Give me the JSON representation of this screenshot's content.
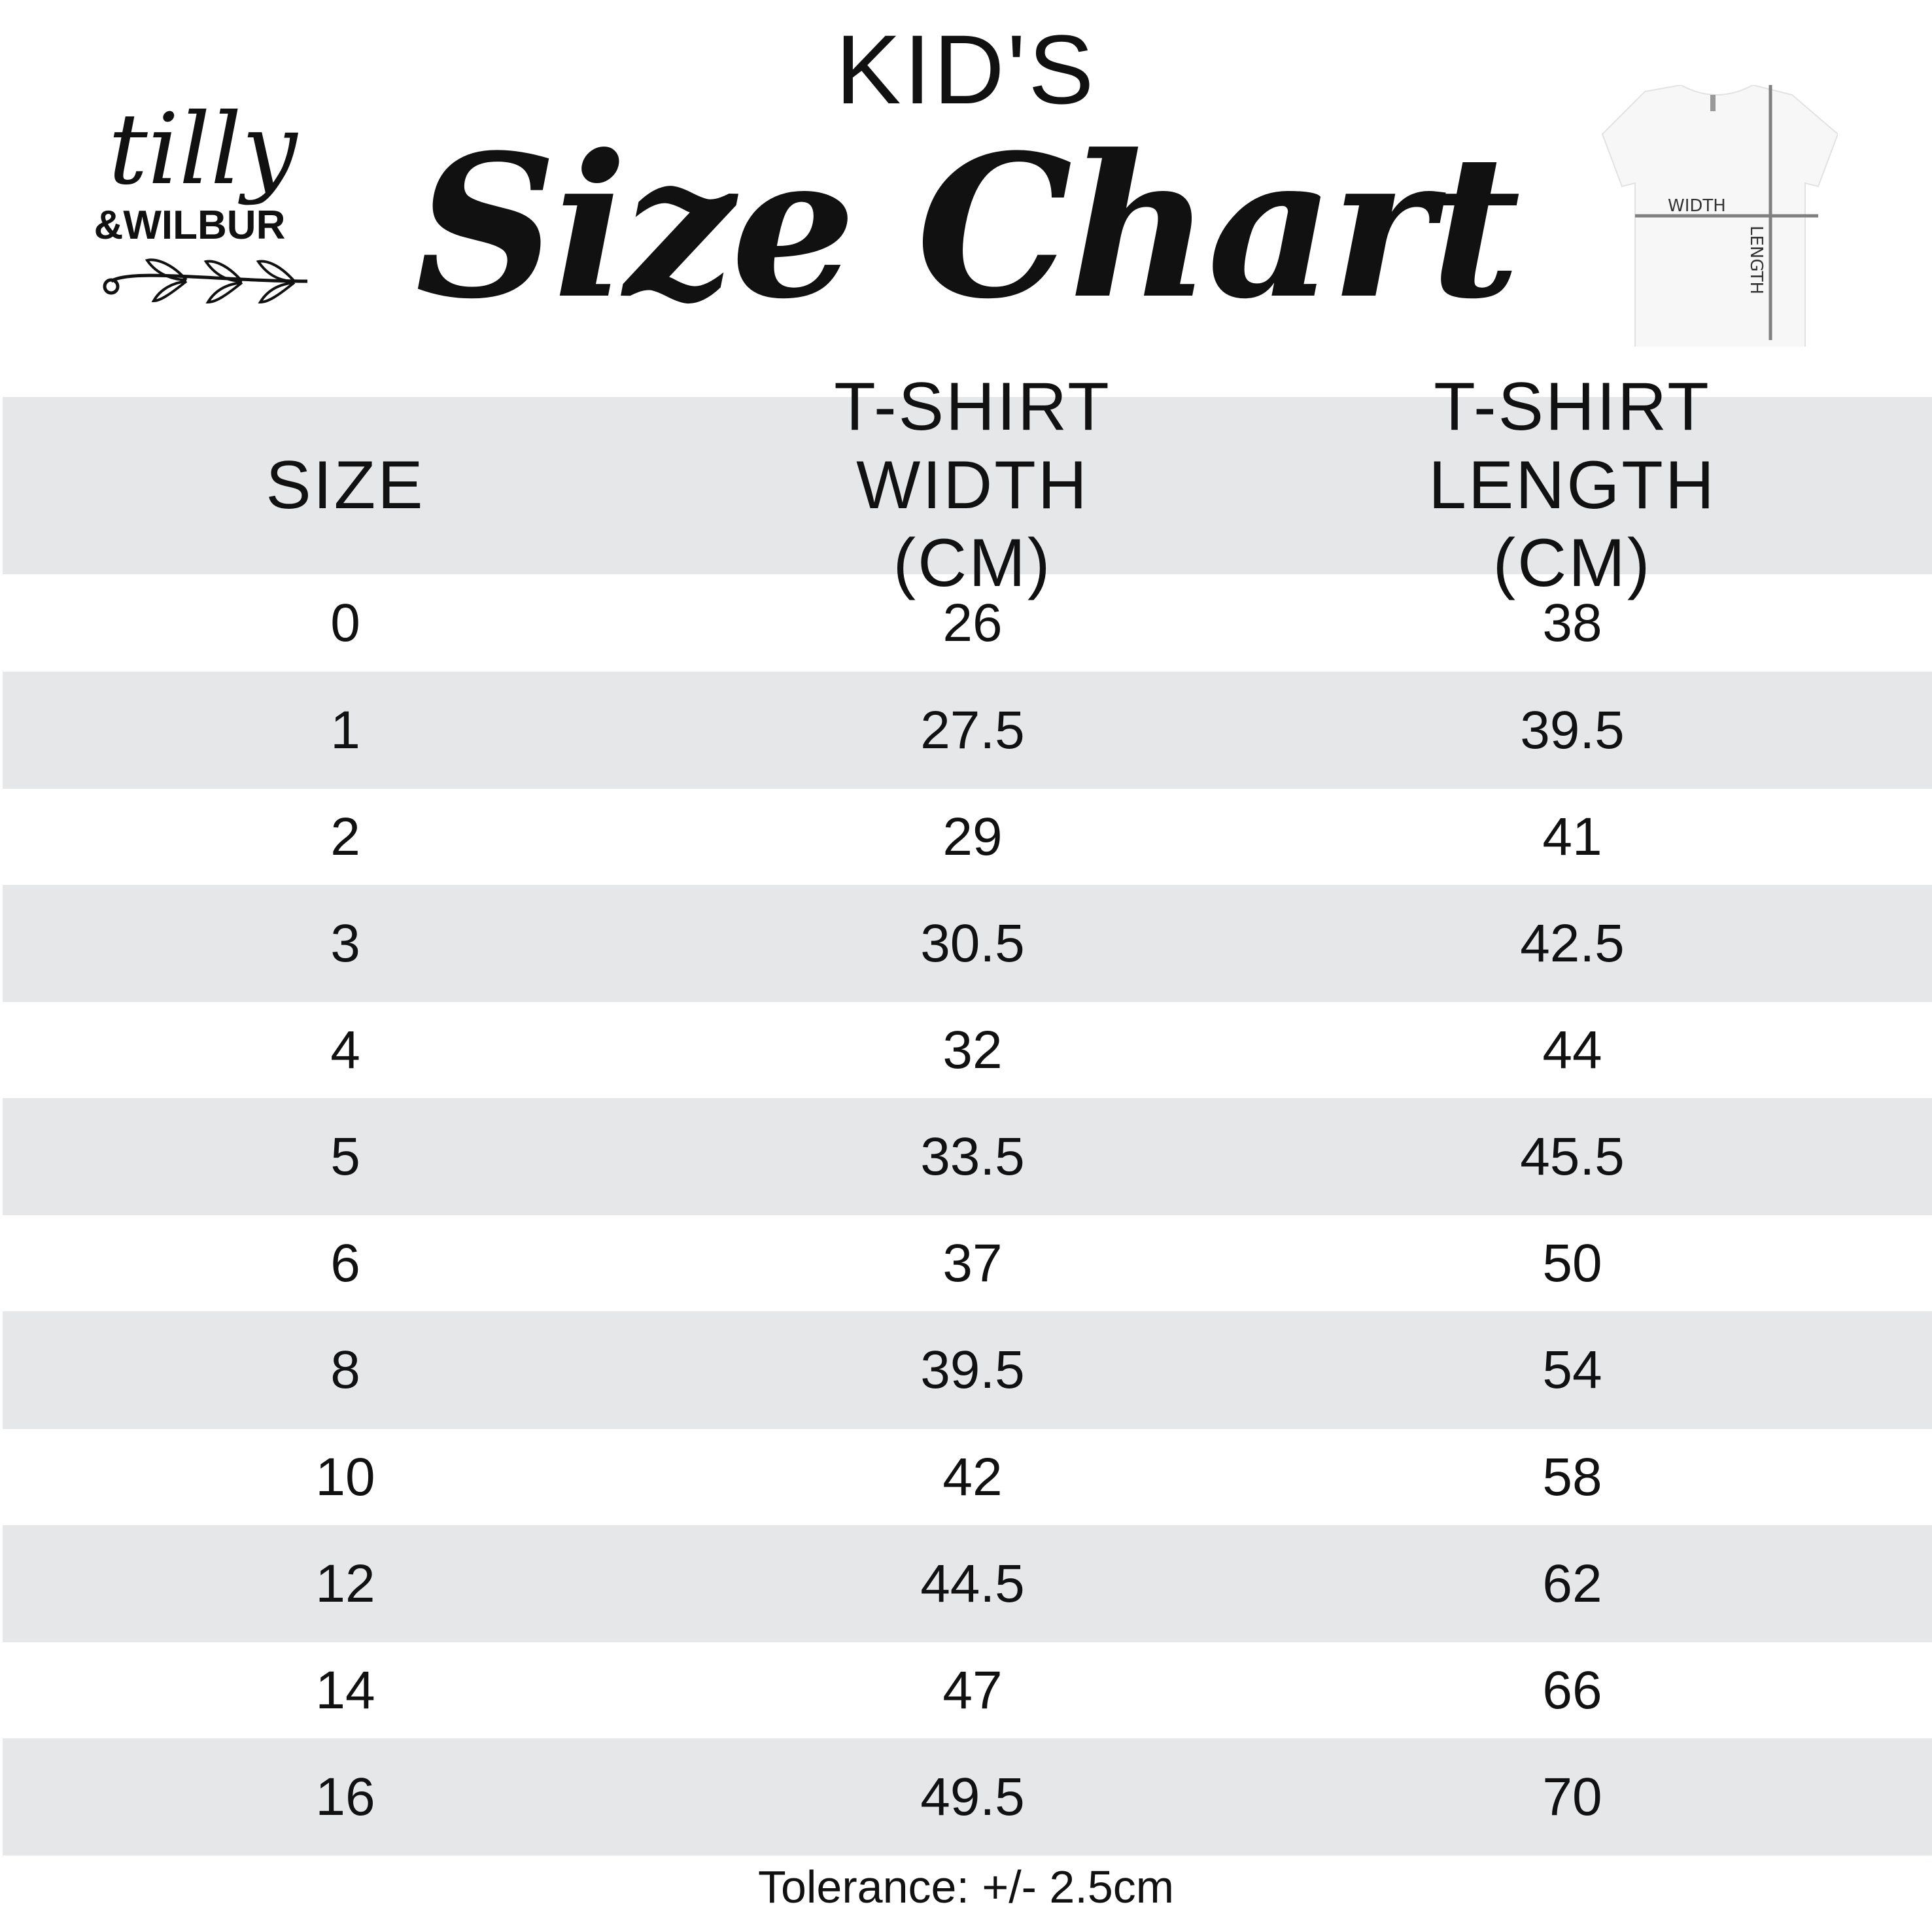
{
  "header": {
    "kicker": "KID'S",
    "title": "Size Chart"
  },
  "logo": {
    "text": "tilly & WILBUR"
  },
  "diagram": {
    "width_label": "WIDTH",
    "length_label": "LENGTH"
  },
  "table": {
    "columns": [
      "SIZE",
      "T-SHIRT WIDTH (CM)",
      "T-SHIRT LENGTH (CM)"
    ],
    "rows": [
      [
        "0",
        "26",
        "38"
      ],
      [
        "1",
        "27.5",
        "39.5"
      ],
      [
        "2",
        "29",
        "41"
      ],
      [
        "3",
        "30.5",
        "42.5"
      ],
      [
        "4",
        "32",
        "44"
      ],
      [
        "5",
        "33.5",
        "45.5"
      ],
      [
        "6",
        "37",
        "50"
      ],
      [
        "8",
        "39.5",
        "54"
      ],
      [
        "10",
        "42",
        "58"
      ],
      [
        "12",
        "44.5",
        "62"
      ],
      [
        "14",
        "47",
        "66"
      ],
      [
        "16",
        "49.5",
        "70"
      ]
    ]
  },
  "footer": {
    "tolerance": "Tolerance: +/- 2.5cm"
  },
  "colors": {
    "stripe": "#e6e7e9",
    "text": "#111111",
    "measure_line": "#808080"
  }
}
